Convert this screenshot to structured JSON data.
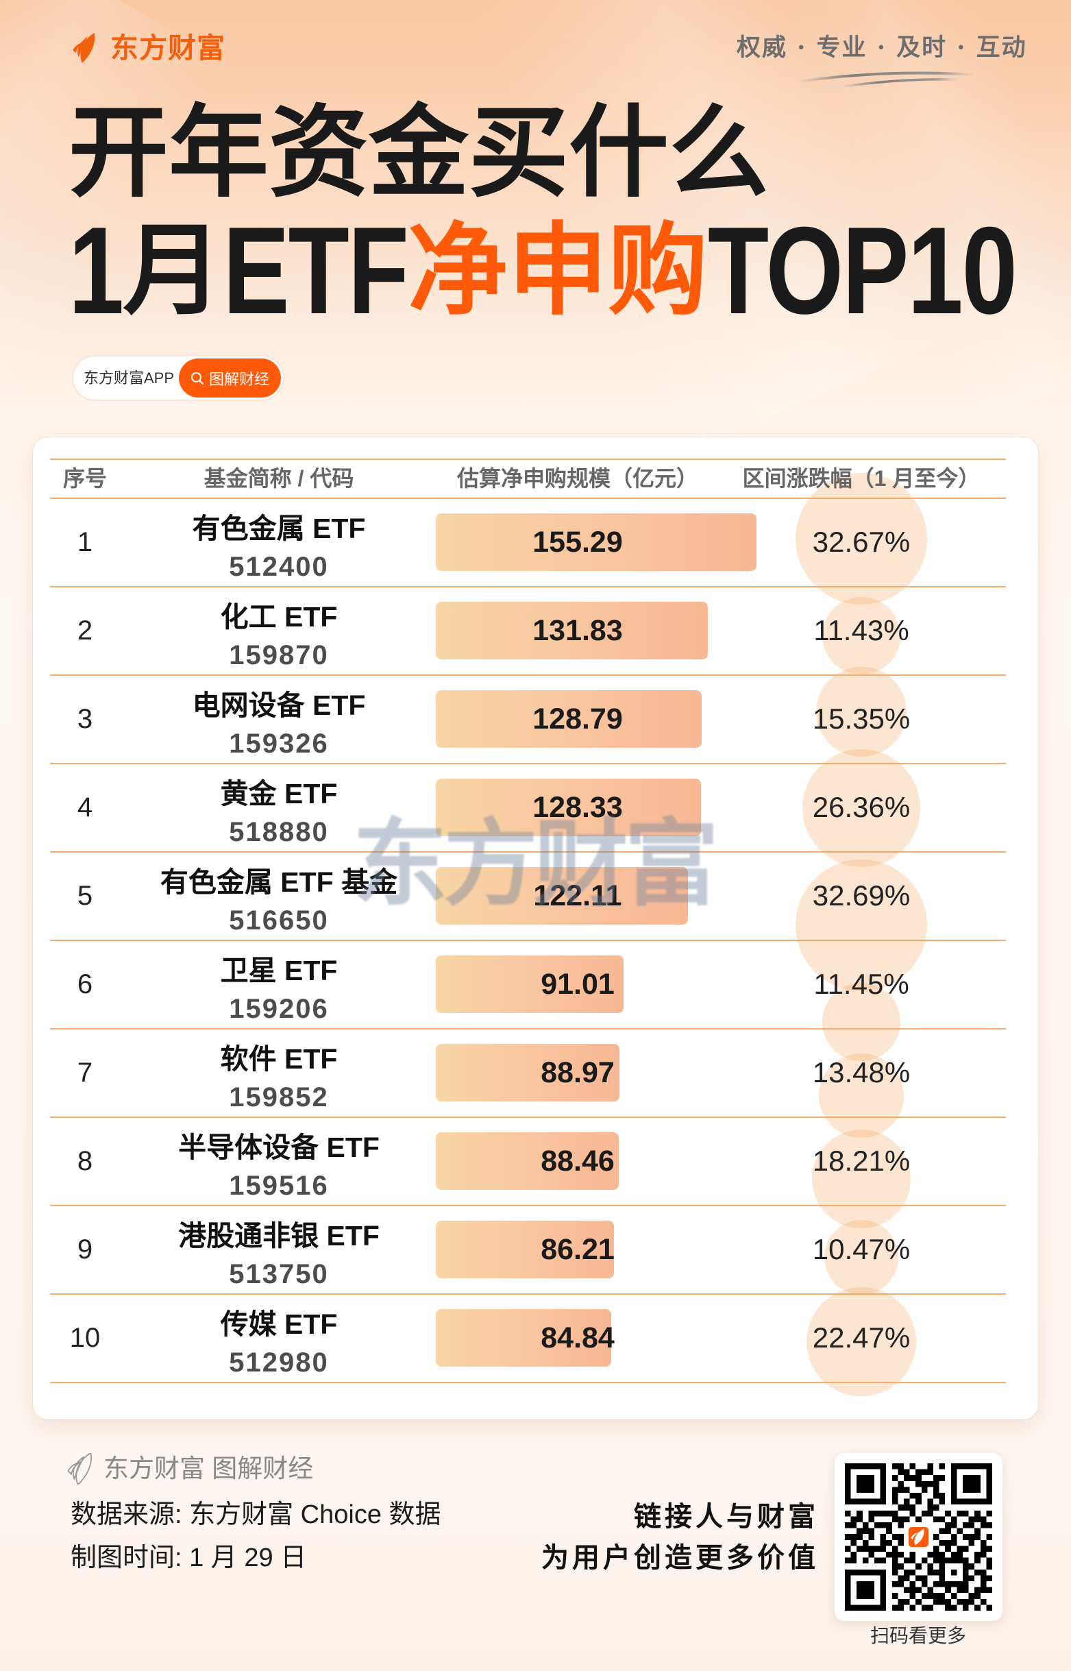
{
  "header": {
    "brand_name": "东方财富",
    "slogan": "权威 · 专业 · 及时 · 互动"
  },
  "title": {
    "line1": "开年资金买什么",
    "line2_segments": [
      "1",
      "月",
      "ETF",
      "净申购",
      "TOP10"
    ]
  },
  "tag": {
    "app_label": "东方财富APP",
    "search_label": "图解财经"
  },
  "table": {
    "headers": {
      "rank": "序号",
      "fund": "基金简称 / 代码",
      "net_subscription": "估算净申购规模（亿元）",
      "change": "区间涨跌幅（1 月至今）"
    },
    "rows": [
      {
        "rank": "1",
        "name": "有色金属 ETF",
        "code": "512400",
        "net_subscription": "155.29",
        "change": "32.67%"
      },
      {
        "rank": "2",
        "name": "化工 ETF",
        "code": "159870",
        "net_subscription": "131.83",
        "change": "11.43%"
      },
      {
        "rank": "3",
        "name": "电网设备 ETF",
        "code": "159326",
        "net_subscription": "128.79",
        "change": "15.35%"
      },
      {
        "rank": "4",
        "name": "黄金 ETF",
        "code": "518880",
        "net_subscription": "128.33",
        "change": "26.36%"
      },
      {
        "rank": "5",
        "name": "有色金属 ETF 基金",
        "code": "516650",
        "net_subscription": "122.11",
        "change": "32.69%"
      },
      {
        "rank": "6",
        "name": "卫星 ETF",
        "code": "159206",
        "net_subscription": "91.01",
        "change": "11.45%"
      },
      {
        "rank": "7",
        "name": "软件 ETF",
        "code": "159852",
        "net_subscription": "88.97",
        "change": "13.48%"
      },
      {
        "rank": "8",
        "name": "半导体设备 ETF",
        "code": "159516",
        "net_subscription": "88.46",
        "change": "18.21%"
      },
      {
        "rank": "9",
        "name": "港股通非银 ETF",
        "code": "513750",
        "net_subscription": "86.21",
        "change": "10.47%"
      },
      {
        "rank": "10",
        "name": "传媒 ETF",
        "code": "512980",
        "net_subscription": "84.84",
        "change": "22.47%"
      }
    ]
  },
  "watermark": "东方财富",
  "footer": {
    "brand_line": "东方财富 图解财经",
    "source": "数据来源: 东方财富 Choice 数据",
    "date": "制图时间: 1 月 29 日",
    "motto_line1": "链接人与财富",
    "motto_line2": "为用户创造更多价值",
    "qr_caption": "扫码看更多"
  },
  "colors": {
    "brand_orange": "#F2600E",
    "accent_orange": "#FF5A0A",
    "title_text": "#1A1A1A",
    "table_line": "#F5AB6B",
    "bar_gradient_start": "#F8D6A6",
    "bar_gradient_end": "#F9B894",
    "bubble_fill": "rgba(246,172,104,0.30)",
    "header_text": "#666666"
  },
  "chart_data": {
    "type": "bar",
    "orientation": "horizontal",
    "title": "开年资金买什么 1月ETF净申购TOP10",
    "categories": [
      "有色金属 ETF",
      "化工 ETF",
      "电网设备 ETF",
      "黄金 ETF",
      "有色金属 ETF 基金",
      "卫星 ETF",
      "软件 ETF",
      "半导体设备 ETF",
      "港股通非银 ETF",
      "传媒 ETF"
    ],
    "codes": [
      "512400",
      "159870",
      "159326",
      "518880",
      "516650",
      "159206",
      "159852",
      "159516",
      "513750",
      "512980"
    ],
    "series": [
      {
        "name": "估算净申购规模（亿元）",
        "values": [
          155.29,
          131.83,
          128.79,
          128.33,
          122.11,
          91.01,
          88.97,
          88.46,
          86.21,
          84.84
        ]
      },
      {
        "name": "区间涨跌幅（1 月至今）",
        "unit": "%",
        "values": [
          32.67,
          11.43,
          15.35,
          26.36,
          32.69,
          11.45,
          13.48,
          18.21,
          10.47,
          22.47
        ]
      }
    ],
    "xlabel": "估算净申购规模（亿元）",
    "ylabel": "基金简称 / 代码",
    "legend": "none",
    "grid": false
  }
}
